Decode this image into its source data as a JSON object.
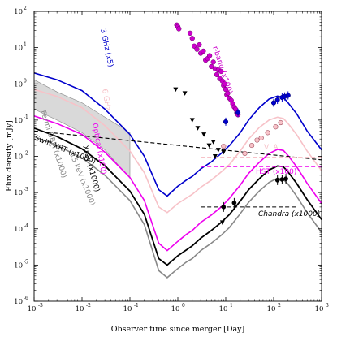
{
  "chart_data": {
    "type": "line",
    "xlabel": "Observer time since merger [Day]",
    "ylabel": "Flux density [mJy]",
    "xscale": "log",
    "yscale": "log",
    "xlim": [
      0.001,
      1000
    ],
    "ylim": [
      1e-06,
      100
    ],
    "x_ticks": [
      {
        "value": 0.001,
        "label": "10",
        "exp": "-3"
      },
      {
        "value": 0.01,
        "label": "10",
        "exp": "-2"
      },
      {
        "value": 0.1,
        "label": "10",
        "exp": "-1"
      },
      {
        "value": 1,
        "label": "10",
        "exp": "0"
      },
      {
        "value": 10,
        "label": "10",
        "exp": "1"
      },
      {
        "value": 100,
        "label": "10",
        "exp": "2"
      },
      {
        "value": 1000,
        "label": "10",
        "exp": "3"
      }
    ],
    "y_ticks": [
      {
        "value": 100,
        "label": "10",
        "exp": "2"
      },
      {
        "value": 10,
        "label": "10",
        "exp": "1"
      },
      {
        "value": 1,
        "label": "10",
        "exp": "0"
      },
      {
        "value": 0.1,
        "label": "10",
        "exp": "-1"
      },
      {
        "value": 0.01,
        "label": "10",
        "exp": "-2"
      },
      {
        "value": 0.001,
        "label": "10",
        "exp": "-3"
      },
      {
        "value": 0.0001,
        "label": "10",
        "exp": "-4"
      },
      {
        "value": 1e-05,
        "label": "10",
        "exp": "-5"
      },
      {
        "value": 1e-06,
        "label": "10",
        "exp": "-6"
      }
    ],
    "series": [
      {
        "name": "3 GHz (x5)",
        "color": "#0000cc",
        "x": [
          0.001,
          0.003,
          0.01,
          0.03,
          0.1,
          0.2,
          0.4,
          0.6,
          1.0,
          1.5,
          2,
          3,
          5,
          8,
          12,
          20,
          30,
          50,
          80,
          120,
          160,
          200,
          300,
          500,
          1000
        ],
        "y": [
          2.0,
          1.3,
          0.65,
          0.2,
          0.04,
          0.01,
          0.0012,
          0.0008,
          0.0015,
          0.0022,
          0.0028,
          0.0045,
          0.007,
          0.012,
          0.02,
          0.045,
          0.1,
          0.22,
          0.38,
          0.46,
          0.42,
          0.3,
          0.15,
          0.05,
          0.015
        ]
      },
      {
        "name": "6 GHz",
        "color": "#f7c2c8",
        "x": [
          0.001,
          0.003,
          0.01,
          0.03,
          0.1,
          0.2,
          0.4,
          0.6,
          1.0,
          1.5,
          2,
          3,
          5,
          8,
          12,
          20,
          30,
          50,
          80,
          120,
          160,
          200,
          300,
          500,
          1000
        ],
        "y": [
          0.7,
          0.45,
          0.22,
          0.07,
          0.014,
          0.0035,
          0.0004,
          0.00028,
          0.0005,
          0.0007,
          0.0009,
          0.0014,
          0.0022,
          0.0037,
          0.006,
          0.014,
          0.03,
          0.062,
          0.1,
          0.12,
          0.11,
          0.08,
          0.04,
          0.014,
          0.004
        ]
      },
      {
        "name": "Optical (x100)",
        "color": "#ee00ee",
        "x": [
          0.001,
          0.003,
          0.01,
          0.03,
          0.1,
          0.2,
          0.4,
          0.6,
          1.0,
          1.5,
          2,
          3,
          5,
          8,
          12,
          20,
          30,
          50,
          80,
          120,
          160,
          200,
          300,
          500,
          1000
        ],
        "y": [
          0.13,
          0.08,
          0.04,
          0.013,
          0.0026,
          0.0006,
          4e-05,
          2.5e-05,
          4.5e-05,
          7e-05,
          9e-05,
          0.00015,
          0.00024,
          0.0004,
          0.0007,
          0.0016,
          0.0034,
          0.0068,
          0.012,
          0.0155,
          0.0145,
          0.0105,
          0.0052,
          0.0018,
          0.0005
        ]
      },
      {
        "name": "Xray (x1000)",
        "color": "#000000",
        "x": [
          0.001,
          0.003,
          0.01,
          0.03,
          0.1,
          0.2,
          0.4,
          0.6,
          1.0,
          1.5,
          2,
          3,
          5,
          8,
          12,
          20,
          30,
          50,
          80,
          120,
          160,
          200,
          300,
          500,
          1000
        ],
        "y": [
          0.06,
          0.035,
          0.016,
          0.0055,
          0.0011,
          0.00025,
          1.5e-05,
          1e-05,
          1.8e-05,
          2.6e-05,
          3.4e-05,
          5.5e-05,
          9e-05,
          0.00015,
          0.00025,
          0.00058,
          0.0012,
          0.0024,
          0.0042,
          0.0054,
          0.0051,
          0.0037,
          0.0018,
          0.00064,
          0.00018
        ]
      },
      {
        "name": "15 keV (x1000)",
        "color": "#888888",
        "x": [
          0.001,
          0.003,
          0.01,
          0.03,
          0.1,
          0.2,
          0.4,
          0.6,
          1.0,
          1.5,
          2,
          3,
          5,
          8,
          12,
          20,
          30,
          50,
          80,
          120,
          160,
          200,
          300,
          500,
          1000
        ],
        "y": [
          0.035,
          0.02,
          0.009,
          0.003,
          0.0006,
          0.00013,
          7e-06,
          4.5e-06,
          8e-06,
          1.2e-05,
          1.5e-05,
          2.5e-05,
          4e-05,
          6.6e-05,
          0.00011,
          0.00026,
          0.00054,
          0.0011,
          0.0019,
          0.0025,
          0.0023,
          0.0017,
          0.0008,
          0.00028,
          8e-05
        ]
      }
    ],
    "dashed_limits": [
      {
        "name": "Swift XRT (x1000)",
        "color": "#000000",
        "x": [
          0.001,
          1000
        ],
        "y": [
          0.05,
          0.008
        ]
      },
      {
        "name": "Chandra (x1000)",
        "color": "#000000",
        "x": [
          3,
          300
        ],
        "y": [
          0.0004,
          0.0004
        ]
      },
      {
        "name": "VLA",
        "color": "#f7c2c8",
        "x": [
          3,
          1000
        ],
        "y": [
          0.0095,
          0.0095
        ]
      },
      {
        "name": "HST (x100)",
        "color": "#ee00ee",
        "x": [
          3,
          1000
        ],
        "y": [
          0.0052,
          0.0052
        ]
      }
    ],
    "r_band_points": {
      "name": "r-band (x100)",
      "color": "#cc00cc",
      "x": [
        0.95,
        1.0,
        1.05,
        1.8,
        2.0,
        2.2,
        2.5,
        2.8,
        3.0,
        3.4,
        3.8,
        4.2,
        4.6,
        5.0,
        5.5,
        6.0,
        6.5,
        7.0,
        7.5,
        8.0,
        8.5,
        9.0,
        9.5,
        10.0,
        10.5,
        11,
        12,
        13,
        14,
        15,
        16,
        17,
        18
      ],
      "y": [
        42,
        38,
        33,
        25,
        18,
        11,
        9,
        12,
        7,
        8,
        4.5,
        5,
        6,
        3,
        4,
        2.6,
        1.8,
        2.4,
        1.4,
        2.2,
        1.2,
        0.9,
        1.0,
        0.7,
        0.5,
        0.55,
        0.4,
        0.35,
        0.28,
        0.23,
        0.2,
        0.16,
        0.14
      ]
    },
    "radio_points": {
      "x": [
        10,
        18,
        100,
        120,
        150,
        170,
        200
      ],
      "y": [
        0.09,
        0.16,
        0.3,
        0.36,
        0.42,
        0.45,
        0.48
      ]
    },
    "vla_open_points": {
      "x": [
        9,
        25,
        35,
        45,
        55,
        75,
        110,
        140
      ],
      "y": [
        0.019,
        0.012,
        0.02,
        0.028,
        0.032,
        0.045,
        0.065,
        0.085
      ]
    },
    "chandra_points": {
      "x": [
        9,
        15,
        120,
        150,
        180
      ],
      "y": [
        0.0004,
        0.00052,
        0.0022,
        0.0023,
        0.0024
      ]
    },
    "upper_limits": {
      "x": [
        0.9,
        1.4,
        2.6,
        3.5,
        4.5,
        6.0,
        7.0,
        9.0,
        5.5,
        2.0,
        8.5
      ],
      "y": [
        0.7,
        0.55,
        0.06,
        0.04,
        0.02,
        0.01,
        0.015,
        0.013,
        0.025,
        0.1,
        0.00015
      ]
    },
    "fermi_band": {
      "name": "Fermi GBM (x1000)",
      "x": [
        0.001,
        0.003,
        0.01,
        0.03,
        0.1
      ],
      "y_high": [
        1.3,
        0.6,
        0.3,
        0.12,
        0.045
      ],
      "y_low": [
        0.2,
        0.1,
        0.045,
        0.015,
        0.0025
      ]
    },
    "labels": {
      "ghz3": "3 GHz (x5)",
      "ghz6": "6 GHz",
      "optical": "Optical (x100)",
      "xray": "Xray (x1000)",
      "kev15": "15 keV (x1000)",
      "fermi": "Fermi GBM (x1000)",
      "swift": "Swift XRT (x1000)",
      "rband": "r-band (x100)",
      "vla": "VLA",
      "hst": "HST (x100)",
      "chandra": "Chandra (x1000)"
    }
  }
}
